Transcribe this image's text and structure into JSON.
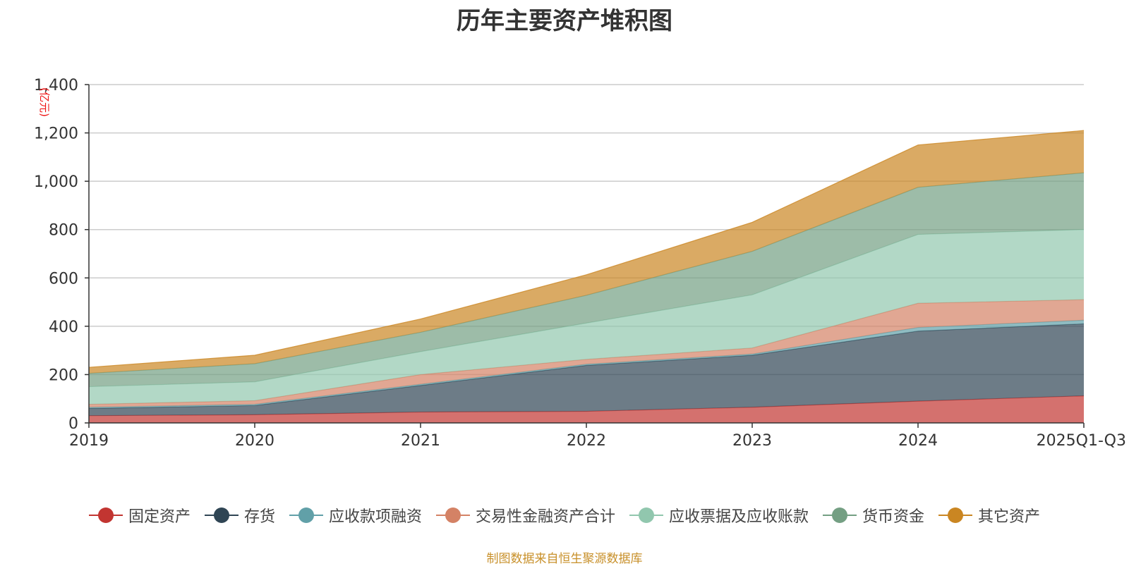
{
  "chart_data": {
    "type": "area",
    "title": "历年主要资产堆积图",
    "ylabel": "(亿元)",
    "xlabel": "",
    "categories": [
      "2019",
      "2020",
      "2021",
      "2022",
      "2023",
      "2024",
      "2025Q1-Q3"
    ],
    "ylim": [
      0,
      1400
    ],
    "yticks": [
      0,
      200,
      400,
      600,
      800,
      1000,
      1200,
      1400
    ],
    "ytick_labels": [
      "0",
      "200",
      "400",
      "600",
      "800",
      "1,000",
      "1,200",
      "1,400"
    ],
    "grid": true,
    "stacked": true,
    "legend_position": "bottom",
    "series": [
      {
        "name": "固定资产",
        "color": "#c23531",
        "values": [
          30,
          34,
          45,
          48,
          65,
          90,
          112
        ]
      },
      {
        "name": "存货",
        "color": "#2f4554",
        "values": [
          30,
          38,
          110,
          190,
          215,
          290,
          298
        ]
      },
      {
        "name": "应收款项融资",
        "color": "#61a0a8",
        "values": [
          5,
          5,
          5,
          5,
          5,
          15,
          15
        ]
      },
      {
        "name": "交易性金融资产合计",
        "color": "#d48265",
        "values": [
          12,
          15,
          40,
          20,
          25,
          100,
          85
        ]
      },
      {
        "name": "应收票据及应收账款",
        "color": "#91c7ae",
        "values": [
          73,
          78,
          95,
          150,
          220,
          285,
          290
        ]
      },
      {
        "name": "货币资金",
        "color": "#749f83",
        "values": [
          55,
          75,
          80,
          115,
          180,
          195,
          235
        ]
      },
      {
        "name": "其它资产",
        "color": "#ca8622",
        "values": [
          25,
          35,
          55,
          85,
          120,
          175,
          175
        ]
      }
    ]
  },
  "footer": {
    "source": "制图数据来自恒生聚源数据库"
  }
}
